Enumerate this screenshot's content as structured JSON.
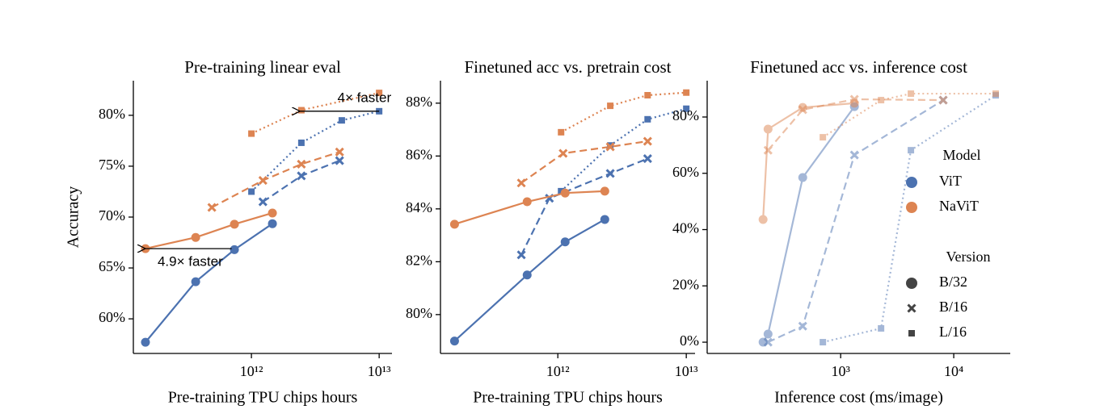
{
  "chart_data": [
    {
      "type": "line",
      "title": "Pre-training linear eval",
      "x_label": "Pre-training TPU chips hours",
      "y_label": "Accuracy",
      "xlog": true,
      "xlim": [
        119000000000.0,
        12600000000000.0
      ],
      "ylim": [
        56.6,
        83.4
      ],
      "xticks": [
        {
          "value": 1000000000000.0,
          "label": "10¹²"
        },
        {
          "value": 10000000000000.0,
          "label": "10¹³"
        }
      ],
      "yticks": [
        {
          "value": 60,
          "label": "60%"
        },
        {
          "value": 65,
          "label": "65%"
        },
        {
          "value": 70,
          "label": "70%"
        },
        {
          "value": 75,
          "label": "75%"
        },
        {
          "value": 80,
          "label": "80%"
        }
      ],
      "series": [
        {
          "model": 0,
          "version": 0,
          "x": [
            148000000000.0,
            366000000000.0,
            736000000000.0,
            1460000000000.0
          ],
          "values": [
            57.7,
            63.65,
            66.8,
            69.35
          ]
        },
        {
          "model": 0,
          "version": 1,
          "x": [
            1230000000000.0,
            2460000000000.0,
            4900000000000.0
          ],
          "values": [
            71.5,
            74.05,
            75.55
          ]
        },
        {
          "model": 0,
          "version": 2,
          "x": [
            1000000000000.0,
            2460000000000.0,
            5100000000000.0,
            10000000000000.0
          ],
          "values": [
            72.5,
            77.3,
            79.5,
            80.4
          ]
        },
        {
          "model": 1,
          "version": 0,
          "x": [
            148000000000.0,
            366000000000.0,
            736000000000.0,
            1460000000000.0
          ],
          "values": [
            66.9,
            68.0,
            69.3,
            70.4
          ]
        },
        {
          "model": 1,
          "version": 1,
          "x": [
            490000000000.0,
            1230000000000.0,
            2460000000000.0,
            4900000000000.0
          ],
          "values": [
            70.95,
            73.6,
            75.2,
            76.4
          ]
        },
        {
          "model": 1,
          "version": 2,
          "x": [
            1000000000000.0,
            2460000000000.0,
            10000000000000.0
          ],
          "values": [
            78.2,
            80.5,
            82.2
          ]
        }
      ],
      "annotations": [
        {
          "text": "4× faster",
          "x": [
            10000000000000.0,
            2400000000000.0
          ],
          "y": 80.4
        },
        {
          "text": "4.9× faster",
          "x": [
            700000000000.0,
            148000000000.0
          ],
          "y": 66.9
        }
      ]
    },
    {
      "type": "line",
      "title": "Finetuned acc vs. pretrain cost",
      "x_label": "Pre-training TPU chips hours",
      "xlog": true,
      "xlim": [
        122000000000.0,
        11700000000000.0
      ],
      "ylim": [
        78.53,
        88.85
      ],
      "xticks": [
        {
          "value": 1000000000000.0,
          "label": "10¹²"
        },
        {
          "value": 10000000000000.0,
          "label": "10¹³"
        }
      ],
      "yticks": [
        {
          "value": 80,
          "label": "80%"
        },
        {
          "value": 82,
          "label": "82%"
        },
        {
          "value": 84,
          "label": "84%"
        },
        {
          "value": 86,
          "label": "86%"
        },
        {
          "value": 88,
          "label": "88%"
        }
      ],
      "series": [
        {
          "model": 0,
          "version": 0,
          "x": [
            157000000000.0,
            577000000000.0,
            1140000000000.0,
            2320000000000.0
          ],
          "values": [
            79.0,
            81.5,
            82.75,
            83.6
          ]
        },
        {
          "model": 0,
          "version": 1,
          "x": [
            520000000000.0,
            860000000000.0,
            2560000000000.0,
            5000000000000.0
          ],
          "values": [
            82.26,
            84.4,
            85.34,
            85.9
          ]
        },
        {
          "model": 0,
          "version": 2,
          "x": [
            1060000000000.0,
            2560000000000.0,
            5000000000000.0,
            10000000000000.0
          ],
          "values": [
            84.67,
            86.4,
            87.39,
            87.79
          ]
        },
        {
          "model": 1,
          "version": 0,
          "x": [
            157000000000.0,
            577000000000.0,
            1140000000000.0,
            2320000000000.0
          ],
          "values": [
            83.42,
            84.27,
            84.6,
            84.67
          ]
        },
        {
          "model": 1,
          "version": 1,
          "x": [
            520000000000.0,
            1100000000000.0,
            2560000000000.0,
            5000000000000.0
          ],
          "values": [
            84.98,
            86.1,
            86.35,
            86.56
          ]
        },
        {
          "model": 1,
          "version": 2,
          "x": [
            1060000000000.0,
            2560000000000.0,
            5000000000000.0,
            10000000000000.0
          ],
          "values": [
            86.9,
            87.9,
            88.3,
            88.4
          ]
        }
      ]
    },
    {
      "type": "line",
      "title": "Finetuned acc vs. inference cost",
      "x_label": "Inference cost (ms/image)",
      "xlog": true,
      "xlim": [
        66,
        31600
      ],
      "ylim": [
        -4,
        92.9
      ],
      "alpha": 0.5,
      "xticks": [
        {
          "value": 1000,
          "label": "10³"
        },
        {
          "value": 10000,
          "label": "10⁴"
        }
      ],
      "yticks": [
        {
          "value": 0,
          "label": "0%"
        },
        {
          "value": 20,
          "label": "20%"
        },
        {
          "value": 40,
          "label": "40%"
        },
        {
          "value": 60,
          "label": "60%"
        },
        {
          "value": 80,
          "label": "80%"
        }
      ],
      "series": [
        {
          "model": 0,
          "version": 0,
          "x": [
            206,
            228,
            462,
            1323
          ],
          "values": [
            0,
            2.87,
            58.5,
            83.7
          ]
        },
        {
          "model": 0,
          "version": 1,
          "x": [
            228,
            462,
            1323,
            8070
          ],
          "values": [
            0,
            5.7,
            66.5,
            86.0
          ]
        },
        {
          "model": 0,
          "version": 2,
          "x": [
            696,
            2276,
            4180,
            23500
          ],
          "values": [
            0,
            4.9,
            68.2,
            87.7
          ]
        },
        {
          "model": 1,
          "version": 0,
          "x": [
            206,
            228,
            462,
            1323
          ],
          "values": [
            43.6,
            75.7,
            83.4,
            84.9
          ]
        },
        {
          "model": 1,
          "version": 1,
          "x": [
            228,
            462,
            1323,
            8070
          ],
          "values": [
            68.2,
            82.6,
            86.3,
            86.0
          ]
        },
        {
          "model": 1,
          "version": 2,
          "x": [
            696,
            2276,
            4180,
            23500
          ],
          "values": [
            72.8,
            86.0,
            88.3,
            88.3
          ]
        }
      ],
      "legend": {
        "corner": "center right",
        "model_title": "Model",
        "models": [
          {
            "name": "ViT",
            "color": "#4c72b0"
          },
          {
            "name": "NaViT",
            "color": "#dd8452"
          }
        ],
        "version_title": "Version",
        "versions": [
          {
            "name": "B/32",
            "marker": "circle",
            "dash": "solid"
          },
          {
            "name": "B/16",
            "marker": "x",
            "dash": "dashed"
          },
          {
            "name": "L/16",
            "marker": "square",
            "dash": "dotted"
          }
        ]
      }
    }
  ]
}
